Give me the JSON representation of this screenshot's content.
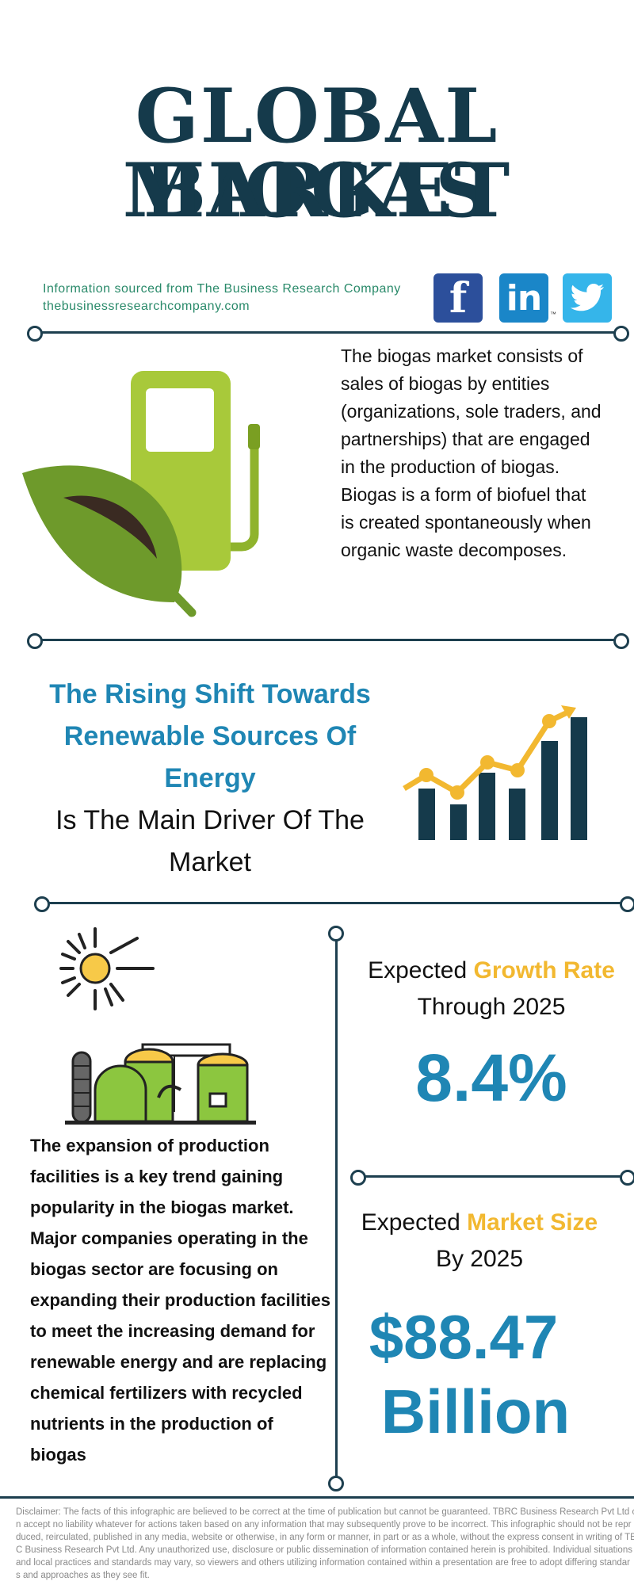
{
  "title": {
    "line1": "GLOBAL BIOGAS",
    "line2": "MARKET"
  },
  "source": {
    "line1": "Information sourced from The Business Research Company",
    "line2": "thebusinessresearchcompany.com"
  },
  "social": {
    "facebook": "f",
    "linkedin": "in",
    "linkedin_tm": "™"
  },
  "colors": {
    "navy": "#153a4b",
    "blue": "#1f86b4",
    "gold": "#f2b830",
    "green": "#8cbf30",
    "teal_text": "#2a8a6a"
  },
  "icons": [
    "facebook-icon",
    "linkedin-icon",
    "twitter-icon",
    "fuel-pump-icon",
    "leaf-icon",
    "growth-chart-icon",
    "sun-icon",
    "biogas-plant-icon"
  ],
  "description": "The biogas market consists of sales of biogas by entities (organizations, sole traders, and partnerships) that are engaged in the production of biogas. Biogas is a form of biofuel that is created spontaneously when organic waste decomposes.",
  "driver": {
    "highlight": "The Rising Shift Towards Renewable Sources Of Energy",
    "rest": "Is The Main Driver Of The Market"
  },
  "trend_text": "The expansion of production facilities is a key trend gaining popularity in the biogas market. Major companies operating in the biogas sector are focusing on expanding their production facilities to meet the increasing demand for renewable energy and are replacing chemical fertilizers with recycled nutrients in the production of biogas",
  "growth": {
    "prefix": "Expected",
    "highlight": "Growth Rate",
    "line2": "Through 2025",
    "value": "8.4%"
  },
  "market_size": {
    "prefix": "Expected",
    "highlight": "Market Size",
    "line2": "By 2025",
    "value_line1": "$88.47",
    "value_line2": "Billion"
  },
  "disclaimer": {
    "line1": "Disclaimer: The facts of this infographic are believed to be correct at the time of publication but cannot be guaranteed. TBRC Business Research Pvt Ltd c",
    "line2": "n accept no liability whatever for actions taken based on any information that may subsequently prove to be incorrect. This infographic should not be repr",
    "line3": "duced, reirculated, published in any media, website or otherwise, in any form or manner, in part or as a whole, without the express consent in writing of TB",
    "line4": "C Business Research Pvt Ltd. Any unauthorized use, disclosure or public dissemination of information contained herein is prohibited. Individual situations",
    "line5": "and local practices and standards may vary, so viewers and others utilizing information contained within a presentation are free to adopt differing standar",
    "line6": "s and approaches as they see fit."
  }
}
